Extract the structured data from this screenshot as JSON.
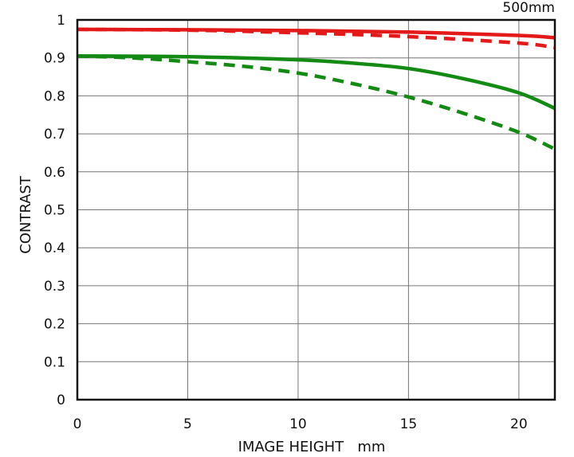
{
  "chart_data": {
    "type": "line",
    "title": "500mm",
    "xlabel": "IMAGE HEIGHT   mm",
    "ylabel": "CONTRAST",
    "xlim": [
      0,
      21.63
    ],
    "ylim": [
      0,
      1
    ],
    "xticks": [
      0,
      5,
      10,
      15,
      20
    ],
    "yticks": [
      0,
      0.1,
      0.2,
      0.3,
      0.4,
      0.5,
      0.6,
      0.7,
      0.8,
      0.9,
      1
    ],
    "ytick_labels": [
      "0",
      "0.1",
      "0.2",
      "0.3",
      "0.4",
      "0.5",
      "0.6",
      "0.7",
      "0.8",
      "0.9",
      "1"
    ],
    "grid": true,
    "series": [
      {
        "color": "#e41a1a",
        "dash": "solid",
        "x": [
          0,
          5,
          10,
          15,
          20,
          21.63
        ],
        "y": [
          0.975,
          0.974,
          0.972,
          0.968,
          0.959,
          0.953
        ]
      },
      {
        "color": "#e41a1a",
        "dash": "dashed",
        "x": [
          0,
          5,
          10,
          15,
          20,
          21.63
        ],
        "y": [
          0.975,
          0.973,
          0.966,
          0.956,
          0.939,
          0.927
        ]
      },
      {
        "color": "#138a13",
        "dash": "solid",
        "x": [
          0,
          5,
          10,
          12.5,
          15,
          17.5,
          20,
          21.63
        ],
        "y": [
          0.905,
          0.903,
          0.895,
          0.886,
          0.872,
          0.845,
          0.808,
          0.767
        ]
      },
      {
        "color": "#138a13",
        "dash": "dashed",
        "x": [
          0,
          2.5,
          5,
          7.5,
          10,
          12.5,
          15,
          17.5,
          20,
          21.63
        ],
        "y": [
          0.905,
          0.9,
          0.89,
          0.878,
          0.86,
          0.832,
          0.797,
          0.754,
          0.704,
          0.66
        ]
      }
    ]
  }
}
